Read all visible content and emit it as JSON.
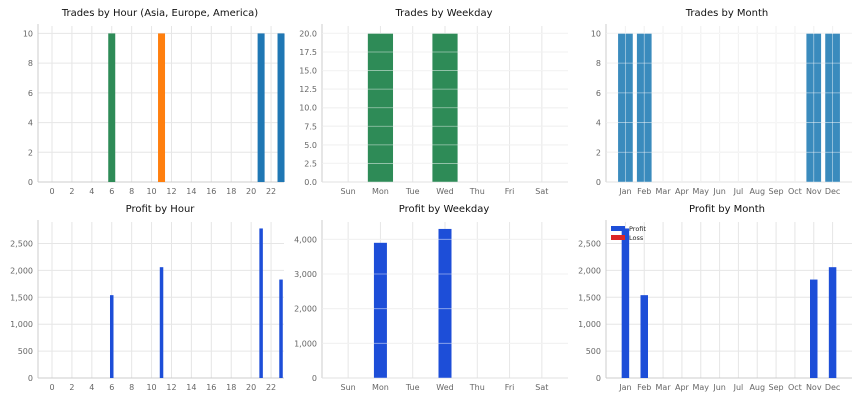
{
  "colors": {
    "green": "#2e8b57",
    "orange": "#ff7f0e",
    "blue": "#1f77b4",
    "steel_blue": "#3a8bbd",
    "profit": "#1d4ed8",
    "loss": "#dc2626",
    "grid": "#e6e6e6",
    "axis": "#cccccc"
  },
  "chart_data": [
    {
      "type": "bar",
      "title": "Trades by Hour (Asia, Europe, America)",
      "x": [
        0,
        1,
        2,
        3,
        4,
        5,
        6,
        7,
        8,
        9,
        10,
        11,
        12,
        13,
        14,
        15,
        16,
        17,
        18,
        19,
        20,
        21,
        22,
        23
      ],
      "values": [
        0,
        0,
        0,
        0,
        0,
        0,
        10,
        0,
        0,
        0,
        0,
        10,
        0,
        0,
        0,
        0,
        0,
        0,
        0,
        0,
        0,
        10,
        0,
        10
      ],
      "bar_colors": {
        "6": "green",
        "11": "orange",
        "21": "blue",
        "23": "blue"
      },
      "xticks": [
        0,
        2,
        4,
        6,
        8,
        10,
        12,
        14,
        16,
        18,
        20,
        22
      ],
      "yticks": [
        0,
        2,
        4,
        6,
        8,
        10
      ],
      "ylim": [
        0,
        10.5
      ],
      "grid": true
    },
    {
      "type": "bar",
      "title": "Trades by Weekday",
      "categories": [
        "Sun",
        "Mon",
        "Tue",
        "Wed",
        "Thu",
        "Fri",
        "Sat"
      ],
      "values": [
        0,
        20,
        0,
        20,
        0,
        0,
        0
      ],
      "yticks": [
        "0.0",
        "2.5",
        "5.0",
        "7.5",
        "10.0",
        "12.5",
        "15.0",
        "17.5",
        "20.0"
      ],
      "ylim": [
        0,
        21
      ],
      "grid": true
    },
    {
      "type": "bar",
      "title": "Trades by Month",
      "categories": [
        "Jan",
        "Feb",
        "Mar",
        "Apr",
        "May",
        "Jun",
        "Jul",
        "Aug",
        "Sep",
        "Oct",
        "Nov",
        "Dec"
      ],
      "values": [
        10,
        10,
        0,
        0,
        0,
        0,
        0,
        0,
        0,
        0,
        10,
        10
      ],
      "yticks": [
        0,
        2,
        4,
        6,
        8,
        10
      ],
      "ylim": [
        0,
        10.5
      ],
      "grid": true
    },
    {
      "type": "bar",
      "title": "Profit by Hour",
      "x": [
        0,
        1,
        2,
        3,
        4,
        5,
        6,
        7,
        8,
        9,
        10,
        11,
        12,
        13,
        14,
        15,
        16,
        17,
        18,
        19,
        20,
        21,
        22,
        23
      ],
      "values": [
        0,
        0,
        0,
        0,
        0,
        0,
        1540,
        0,
        0,
        0,
        0,
        2060,
        0,
        0,
        0,
        0,
        0,
        0,
        0,
        0,
        0,
        2780,
        0,
        1830
      ],
      "xticks": [
        0,
        2,
        4,
        6,
        8,
        10,
        12,
        14,
        16,
        18,
        20,
        22
      ],
      "yticks": [
        "0",
        "500",
        "1,000",
        "1,500",
        "2,000",
        "2,500"
      ],
      "ylim": [
        0,
        2900
      ],
      "grid": true
    },
    {
      "type": "bar",
      "title": "Profit by Weekday",
      "categories": [
        "Sun",
        "Mon",
        "Tue",
        "Wed",
        "Thu",
        "Fri",
        "Sat"
      ],
      "values": [
        0,
        3900,
        0,
        4300,
        0,
        0,
        0
      ],
      "yticks": [
        "0",
        "1,000",
        "2,000",
        "3,000",
        "4,000"
      ],
      "ylim": [
        0,
        4500
      ],
      "grid": true
    },
    {
      "type": "bar",
      "title": "Profit by Month",
      "categories": [
        "Jan",
        "Feb",
        "Mar",
        "Apr",
        "May",
        "Jun",
        "Jul",
        "Aug",
        "Sep",
        "Oct",
        "Nov",
        "Dec"
      ],
      "values": [
        2780,
        1540,
        0,
        0,
        0,
        0,
        0,
        0,
        0,
        0,
        1830,
        2060
      ],
      "yticks": [
        "0",
        "500",
        "1,000",
        "1,500",
        "2,000",
        "2,500"
      ],
      "ylim": [
        0,
        2900
      ],
      "legend": [
        "Profit",
        "Loss"
      ],
      "legend_position": "top-left",
      "grid": true
    }
  ]
}
